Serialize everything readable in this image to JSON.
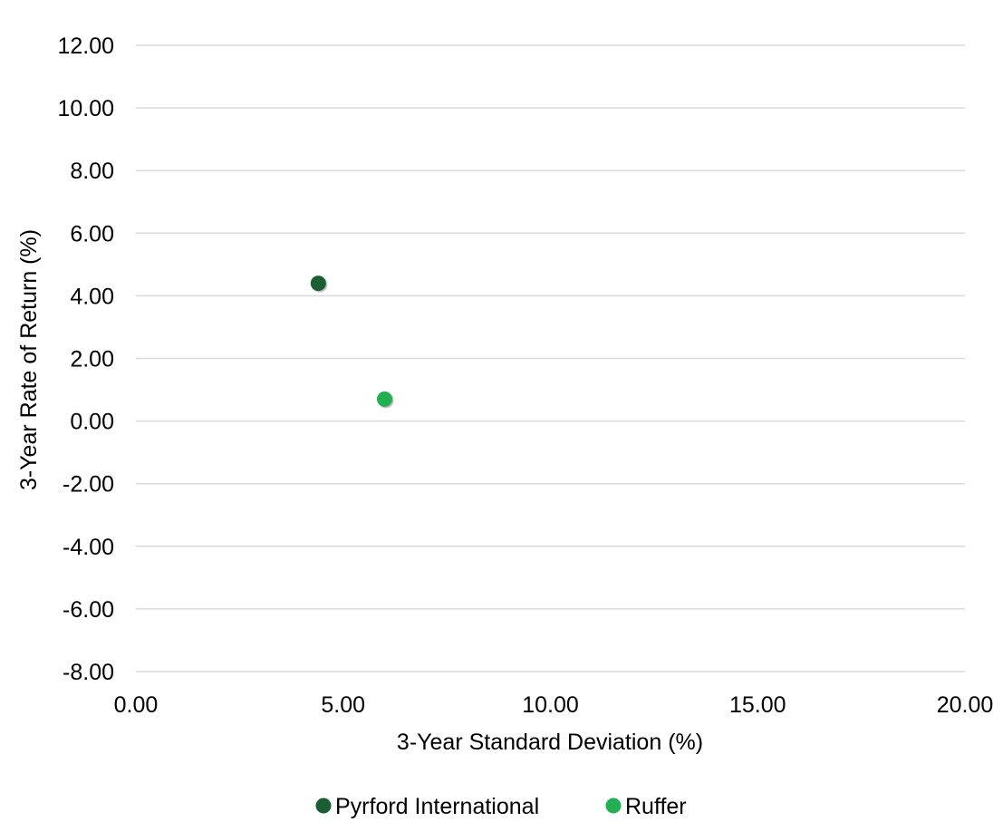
{
  "chart_data": {
    "type": "scatter",
    "title": "",
    "xlabel": "3-Year Standard Deviation (%)",
    "ylabel": "3-Year Rate of Return (%)",
    "xlim": [
      0,
      20
    ],
    "ylim": [
      -8,
      12
    ],
    "x_ticks": [
      "0.00",
      "5.00",
      "10.00",
      "15.00",
      "20.00"
    ],
    "y_ticks": [
      "12.00",
      "10.00",
      "8.00",
      "6.00",
      "4.00",
      "2.00",
      "0.00",
      "-2.00",
      "-4.00",
      "-6.00",
      "-8.00"
    ],
    "grid": "horizontal",
    "legend_position": "bottom",
    "series": [
      {
        "name": "Pyrford International",
        "color": "#1a5e34",
        "points": [
          {
            "x": 4.4,
            "y": 4.4
          }
        ]
      },
      {
        "name": "Ruffer",
        "color": "#21b04f",
        "points": [
          {
            "x": 6.0,
            "y": 0.7
          }
        ]
      }
    ]
  }
}
